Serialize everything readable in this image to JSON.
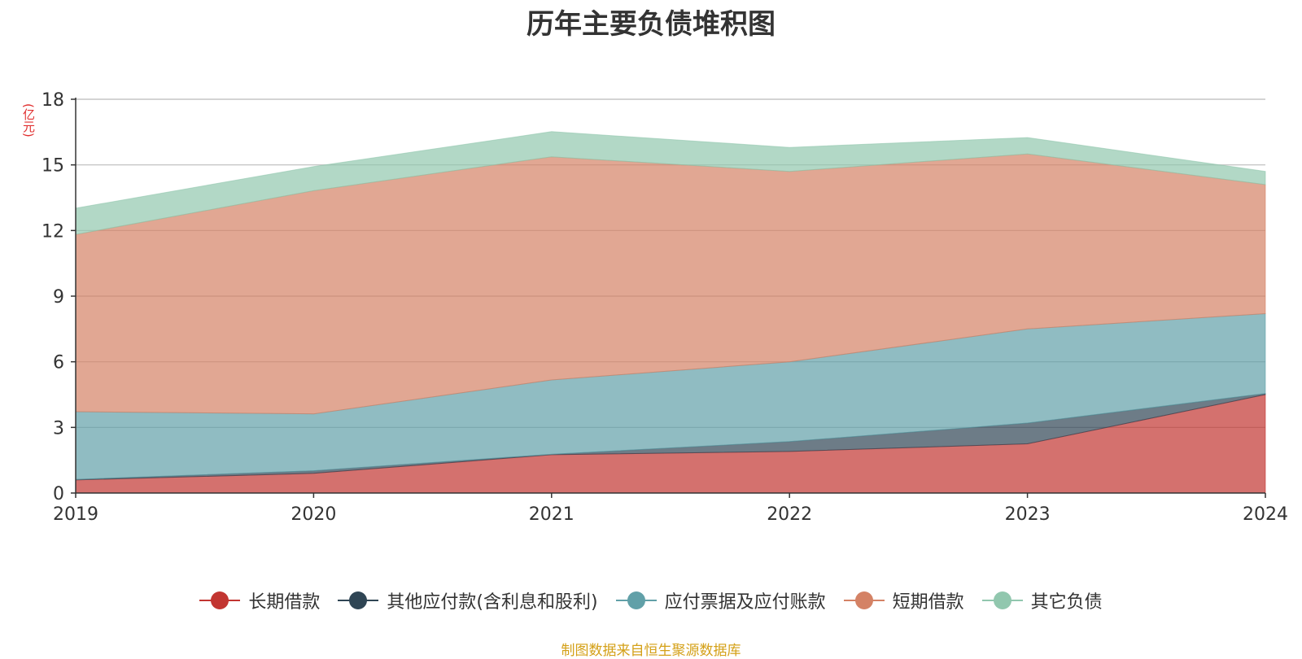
{
  "chart_data": {
    "type": "area",
    "stacked": true,
    "title": "历年主要负债堆积图",
    "unit": "(亿元)",
    "x": [
      "2019",
      "2020",
      "2021",
      "2022",
      "2023",
      "2024"
    ],
    "ylim": [
      0,
      18
    ],
    "yticks": [
      0,
      3,
      6,
      9,
      12,
      15,
      18
    ],
    "grid": true,
    "legend_position": "bottom",
    "series": [
      {
        "name": "长期借款",
        "color": "#c23531",
        "values": [
          0.6,
          0.9,
          1.75,
          1.9,
          2.25,
          4.5
        ]
      },
      {
        "name": "其他应付款(含利息和股利)",
        "color": "#2f4554",
        "values": [
          0.02,
          0.12,
          0.02,
          0.45,
          0.95,
          0.05
        ]
      },
      {
        "name": "应付票据及应付账款",
        "color": "#61a0a8",
        "values": [
          3.1,
          2.6,
          3.4,
          3.65,
          4.3,
          3.65
        ]
      },
      {
        "name": "短期借款",
        "color": "#d48265",
        "values": [
          8.1,
          10.2,
          10.2,
          8.7,
          8.0,
          5.9
        ]
      },
      {
        "name": "其它负债",
        "color": "#91c7ae",
        "values": [
          1.2,
          1.1,
          1.15,
          1.1,
          0.75,
          0.6
        ]
      }
    ]
  },
  "source_note": "制图数据来自恒生聚源数据库"
}
